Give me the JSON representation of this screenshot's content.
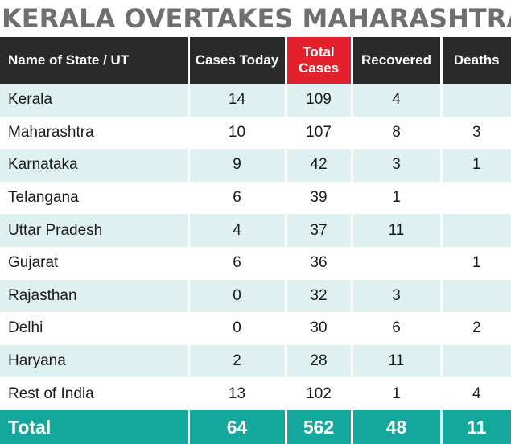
{
  "chart_data": {
    "type": "table",
    "title": "KERALA OVERTAKES MAHARASHTRA",
    "columns": [
      "Name of State / UT",
      "Cases Today",
      "Total Cases",
      "Recovered",
      "Deaths"
    ],
    "highlight_column": "Total Cases",
    "rows": [
      {
        "state": "Kerala",
        "cases_today": "14",
        "total_cases": "109",
        "recovered": "4",
        "deaths": ""
      },
      {
        "state": "Maharashtra",
        "cases_today": "10",
        "total_cases": "107",
        "recovered": "8",
        "deaths": "3"
      },
      {
        "state": "Karnataka",
        "cases_today": "9",
        "total_cases": "42",
        "recovered": "3",
        "deaths": "1"
      },
      {
        "state": "Telangana",
        "cases_today": "6",
        "total_cases": "39",
        "recovered": "1",
        "deaths": ""
      },
      {
        "state": "Uttar Pradesh",
        "cases_today": "4",
        "total_cases": "37",
        "recovered": "11",
        "deaths": ""
      },
      {
        "state": "Gujarat",
        "cases_today": "6",
        "total_cases": "36",
        "recovered": "",
        "deaths": "1"
      },
      {
        "state": "Rajasthan",
        "cases_today": "0",
        "total_cases": "32",
        "recovered": "3",
        "deaths": ""
      },
      {
        "state": "Delhi",
        "cases_today": "0",
        "total_cases": "30",
        "recovered": "6",
        "deaths": "2"
      },
      {
        "state": "Haryana",
        "cases_today": "2",
        "total_cases": "28",
        "recovered": "11",
        "deaths": ""
      },
      {
        "state": "Rest of India",
        "cases_today": "13",
        "total_cases": "102",
        "recovered": "1",
        "deaths": "4"
      }
    ],
    "total": {
      "label": "Total",
      "cases_today": "64",
      "total_cases": "562",
      "recovered": "48",
      "deaths": "11"
    }
  },
  "colors": {
    "header_bg": "#2a2a2a",
    "highlight_header_bg": "#e3202b",
    "stripe_bg": "#dff0f0",
    "total_bg": "#14a89d",
    "title_text": "#6f6f6f"
  }
}
